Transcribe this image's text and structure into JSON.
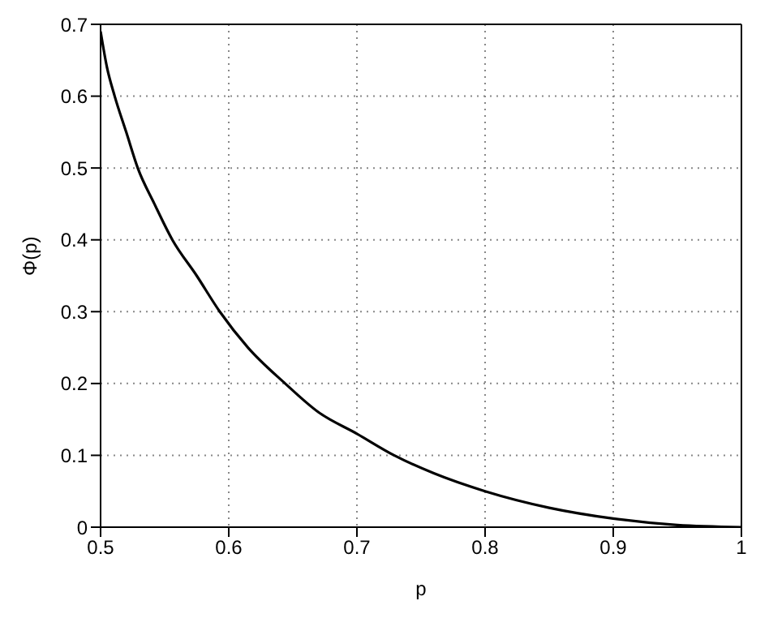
{
  "chart_data": {
    "type": "line",
    "xlabel": "p",
    "ylabel": "Φ(p)",
    "x": [
      0.5,
      0.505,
      0.511,
      0.52,
      0.529,
      0.542,
      0.556,
      0.575,
      0.593,
      0.615,
      0.644,
      0.67,
      0.7,
      0.729,
      0.76,
      0.8,
      0.85,
      0.9,
      0.95,
      1
    ],
    "series": [
      {
        "color": "#000000",
        "values": [
          0.69,
          0.64,
          0.6,
          0.55,
          0.5,
          0.45,
          0.4,
          0.35,
          0.3,
          0.25,
          0.2,
          0.16,
          0.13,
          0.1,
          0.075,
          0.05,
          0.027,
          0.012,
          0.003,
          0
        ]
      }
    ],
    "xlim": [
      0.5,
      1
    ],
    "xticks": [
      0.5,
      0.6,
      0.7,
      0.8,
      0.9,
      1
    ],
    "ylim": [
      0,
      0.7
    ],
    "yticks": [
      0,
      0.1,
      0.2,
      0.3,
      0.4,
      0.5,
      0.6,
      0.7
    ],
    "grid": true,
    "marker": "none",
    "line_style": "solid"
  }
}
